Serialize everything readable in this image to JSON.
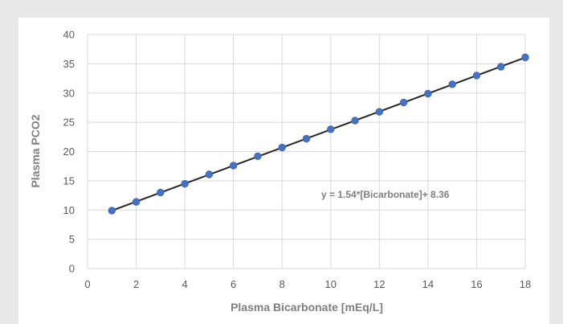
{
  "chart_data": {
    "type": "scatter",
    "title": "",
    "xlabel": "Plasma Bicarbonate [mEq/L]",
    "ylabel": "Plasma PCO2",
    "xlim": [
      0,
      18
    ],
    "ylim": [
      0,
      40
    ],
    "x_ticks": [
      0,
      2,
      4,
      6,
      8,
      10,
      12,
      14,
      16,
      18
    ],
    "y_ticks": [
      0,
      5,
      10,
      15,
      20,
      25,
      30,
      35,
      40
    ],
    "grid": true,
    "legend": "none",
    "annotation": "y = 1.54*[Bicarbonate]+ 8.36",
    "trendline": {
      "slope": 1.54,
      "intercept": 8.36,
      "x_range": [
        1,
        18
      ],
      "color": "#262626"
    },
    "series": [
      {
        "color": "#4472c4",
        "points": [
          {
            "x": 1,
            "y": 9.9
          },
          {
            "x": 2,
            "y": 11.4
          },
          {
            "x": 3,
            "y": 13.0
          },
          {
            "x": 4,
            "y": 14.5
          },
          {
            "x": 5,
            "y": 16.1
          },
          {
            "x": 6,
            "y": 17.6
          },
          {
            "x": 7,
            "y": 19.2
          },
          {
            "x": 8,
            "y": 20.7
          },
          {
            "x": 9,
            "y": 22.2
          },
          {
            "x": 10,
            "y": 23.8
          },
          {
            "x": 11,
            "y": 25.3
          },
          {
            "x": 12,
            "y": 26.8
          },
          {
            "x": 13,
            "y": 28.4
          },
          {
            "x": 14,
            "y": 29.9
          },
          {
            "x": 15,
            "y": 31.5
          },
          {
            "x": 16,
            "y": 33.0
          },
          {
            "x": 17,
            "y": 34.5
          },
          {
            "x": 18,
            "y": 36.1
          }
        ]
      }
    ]
  }
}
